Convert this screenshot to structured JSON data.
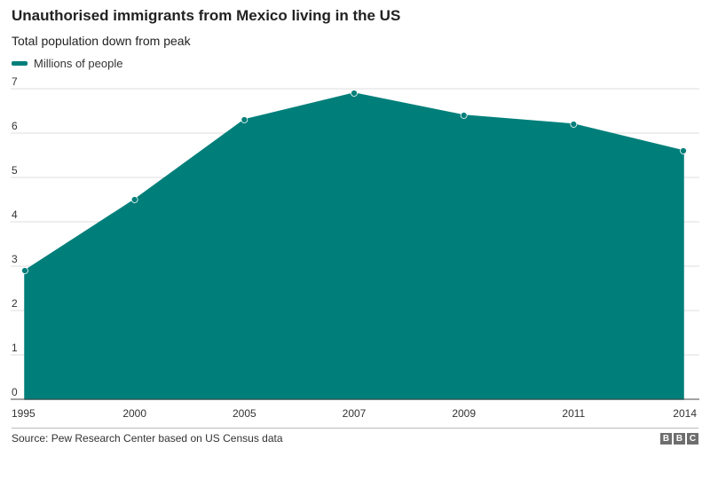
{
  "title": "Unauthorised immigrants from Mexico living in the US",
  "subtitle": "Total population down from peak",
  "colors": {
    "series": "#007f7a",
    "grid": "#dddddd",
    "baseline": "#444444",
    "logo_bg": "#6e6e6e"
  },
  "chart_data": {
    "type": "area",
    "title": "Unauthorised immigrants from Mexico living in the US",
    "subtitle": "Total population down from peak",
    "xlabel": "",
    "ylabel": "",
    "categories": [
      "1995",
      "2000",
      "2005",
      "2007",
      "2009",
      "2011",
      "2014"
    ],
    "series": [
      {
        "name": "Millions of people",
        "values": [
          2.9,
          4.5,
          6.3,
          6.9,
          6.4,
          6.2,
          5.6
        ]
      }
    ],
    "ylim": [
      0,
      7
    ],
    "yticks": [
      0,
      1,
      2,
      3,
      4,
      5,
      6,
      7
    ],
    "grid": true,
    "legend": "top-left"
  },
  "source": "Source: Pew Research Center based on US Census data",
  "logo": [
    "B",
    "B",
    "C"
  ]
}
